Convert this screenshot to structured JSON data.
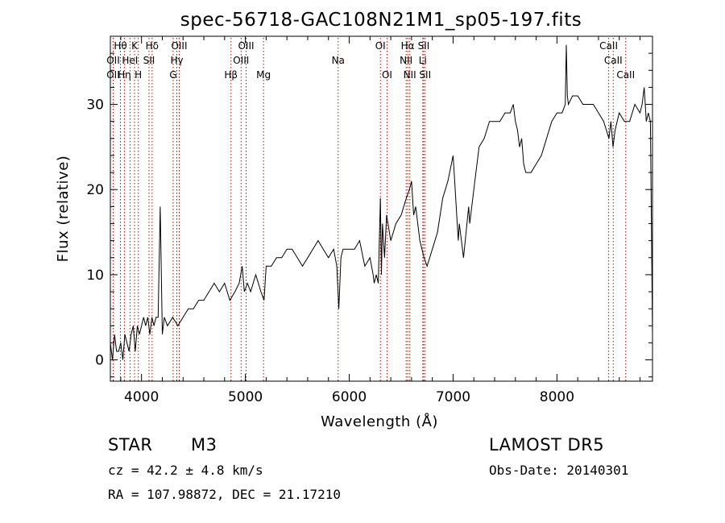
{
  "chart_data": {
    "type": "line",
    "title": "spec-56718-GAC108N21M1_sp05-197.fits",
    "xlabel": "Wavelength (Å)",
    "ylabel": "Flux (relative)",
    "xlim": [
      3700,
      8920
    ],
    "ylim": [
      -2.5,
      38
    ],
    "xticks": [
      4000,
      5000,
      6000,
      7000,
      8000
    ],
    "yticks": [
      0,
      10,
      20,
      30
    ],
    "grid": false,
    "line_color": "#000000",
    "marker_color": "#cc0000",
    "series": [
      {
        "x": [
          3700,
          3720,
          3740,
          3760,
          3780,
          3800,
          3820,
          3840,
          3860,
          3880,
          3900,
          3920,
          3940,
          3960,
          3980,
          4000,
          4020,
          4040,
          4060,
          4080,
          4100,
          4120,
          4140,
          4160,
          4180,
          4200,
          4220,
          4250,
          4300,
          4350,
          4400,
          4450,
          4500,
          4550,
          4600,
          4650,
          4700,
          4750,
          4800,
          4850,
          4900,
          4940,
          4970,
          4990,
          5020,
          5050,
          5100,
          5150,
          5180,
          5200,
          5250,
          5300,
          5350,
          5400,
          5450,
          5500,
          5550,
          5600,
          5650,
          5700,
          5750,
          5800,
          5850,
          5880,
          5900,
          5920,
          5940,
          6000,
          6050,
          6100,
          6150,
          6200,
          6230,
          6240,
          6260,
          6280,
          6300,
          6310,
          6320,
          6340,
          6360,
          6400,
          6450,
          6500,
          6550,
          6580,
          6600,
          6620,
          6640,
          6660,
          6680,
          6700,
          6720,
          6750,
          6800,
          6850,
          6900,
          6950,
          7000,
          7050,
          7060,
          7080,
          7100,
          7150,
          7160,
          7200,
          7250,
          7300,
          7350,
          7400,
          7450,
          7500,
          7550,
          7580,
          7600,
          7620,
          7640,
          7660,
          7680,
          7700,
          7750,
          7800,
          7850,
          7900,
          7950,
          8000,
          8050,
          8080,
          8090,
          8100,
          8110,
          8150,
          8200,
          8250,
          8300,
          8350,
          8400,
          8450,
          8500,
          8520,
          8540,
          8560,
          8600,
          8650,
          8700,
          8750,
          8800,
          8820,
          8840,
          8860,
          8880,
          8900,
          8920
        ],
        "y": [
          2,
          0,
          3,
          1,
          1,
          2,
          0,
          3,
          2,
          1,
          3,
          4,
          1,
          4,
          3,
          4,
          5,
          4,
          5,
          3,
          5,
          4,
          5,
          5,
          18,
          3,
          5,
          4,
          5,
          4,
          5,
          6,
          6,
          7,
          7,
          8,
          9,
          8,
          9,
          7,
          8,
          9,
          11,
          8,
          9,
          8,
          10,
          8,
          7,
          11,
          11,
          12,
          12,
          13,
          13,
          12,
          11,
          12,
          13,
          14,
          13,
          12,
          13,
          11,
          6,
          12,
          13,
          13,
          13,
          14,
          11,
          12,
          10,
          9,
          10,
          9,
          19,
          10,
          16,
          12,
          17,
          14,
          16,
          17,
          19,
          20,
          21,
          17,
          18,
          16,
          14,
          13,
          12,
          11,
          13,
          15,
          19,
          21,
          24,
          14,
          16,
          14,
          12,
          18,
          16,
          20,
          25,
          26,
          28,
          28,
          28,
          29,
          29,
          30,
          28,
          27,
          25,
          26,
          23,
          22,
          22,
          23,
          24,
          26,
          28,
          29,
          29,
          30,
          37,
          31,
          30,
          31,
          31,
          30,
          30,
          30,
          29,
          28,
          26,
          28,
          25,
          27,
          29,
          28,
          28,
          30,
          29,
          30,
          32,
          28,
          29,
          28,
          3
        ]
      }
    ],
    "markers": [
      {
        "w": 3797,
        "label": "Hθ",
        "row": 1
      },
      {
        "w": 3727,
        "label": "OII",
        "row": 2
      },
      {
        "w": 3727,
        "label": "OII",
        "row": 3
      },
      {
        "w": 3835,
        "label": "Hη",
        "row": 3
      },
      {
        "w": 3889,
        "label": "HeI",
        "row": 2
      },
      {
        "w": 3933,
        "label": "K",
        "row": 1
      },
      {
        "w": 3969,
        "label": "H",
        "row": 3
      },
      {
        "w": 4102,
        "label": "Hδ",
        "row": 1
      },
      {
        "w": 4072,
        "label": "SII",
        "row": 2
      },
      {
        "w": 4340,
        "label": "Hγ",
        "row": 2
      },
      {
        "w": 4363,
        "label": "OIII",
        "row": 1
      },
      {
        "w": 4305,
        "label": "G",
        "row": 3
      },
      {
        "w": 4861,
        "label": "Hβ",
        "row": 3
      },
      {
        "w": 4959,
        "label": "OIII",
        "row": 2
      },
      {
        "w": 5007,
        "label": "OIII",
        "row": 1
      },
      {
        "w": 5175,
        "label": "Mg",
        "row": 3
      },
      {
        "w": 5893,
        "label": "Na",
        "row": 2
      },
      {
        "w": 6300,
        "label": "OI",
        "row": 1
      },
      {
        "w": 6364,
        "label": "OI",
        "row": 3
      },
      {
        "w": 6548,
        "label": "NII",
        "row": 2
      },
      {
        "w": 6563,
        "label": "Hα",
        "row": 1
      },
      {
        "w": 6583,
        "label": "NII",
        "row": 3
      },
      {
        "w": 6708,
        "label": "Li",
        "row": 2
      },
      {
        "w": 6717,
        "label": "SII",
        "row": 1
      },
      {
        "w": 6731,
        "label": "SII",
        "row": 3
      },
      {
        "w": 8498,
        "label": "CaII",
        "row": 1
      },
      {
        "w": 8542,
        "label": "CaII",
        "row": 2
      },
      {
        "w": 8662,
        "label": "CaII",
        "row": 3
      }
    ]
  },
  "info": {
    "class": "STAR",
    "subclass": "M3",
    "survey": "LAMOST DR5",
    "cz": "cz = 42.2 ± 4.8 km/s",
    "obs_date": "Obs-Date: 20140301",
    "coords": "RA = 107.98872, DEC =  21.17210"
  }
}
